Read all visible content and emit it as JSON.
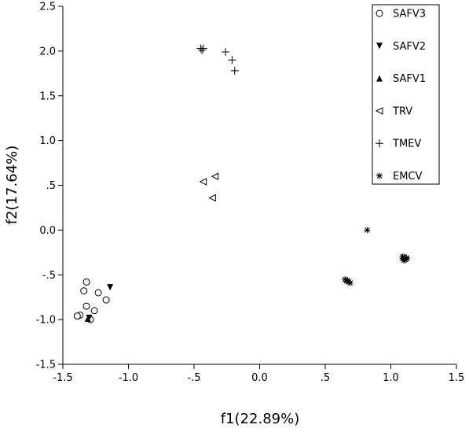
{
  "chart_data": {
    "type": "scatter",
    "title": "",
    "xlabel": "f1(22.89%)",
    "ylabel": "f2(17.64%)",
    "xlim": [
      -1.5,
      1.5
    ],
    "ylim": [
      -1.5,
      2.5
    ],
    "x_ticks": [
      -1.5,
      -1.0,
      -0.5,
      0.0,
      0.5,
      1.0,
      1.5
    ],
    "x_tick_labels": [
      "-1.5",
      "-1.0",
      "-.5",
      "0.0",
      ".5",
      "1.0",
      "1.5"
    ],
    "y_ticks": [
      2.5,
      2.0,
      1.5,
      1.0,
      0.5,
      0.0,
      -0.5,
      -1.0,
      -1.5
    ],
    "y_tick_labels": [
      "2.5",
      "2.0",
      "1.5",
      "1.0",
      ".5",
      "0.0",
      "-.5",
      "-1.0",
      "-1.5"
    ],
    "grid": false,
    "legend_position": "top-right",
    "series": [
      {
        "name": "SAFV3",
        "marker": "circle-open",
        "points": [
          [
            -1.32,
            -0.58
          ],
          [
            -1.34,
            -0.68
          ],
          [
            -1.23,
            -0.7
          ],
          [
            -1.17,
            -0.78
          ],
          [
            -1.32,
            -0.85
          ],
          [
            -1.26,
            -0.9
          ],
          [
            -1.37,
            -0.95
          ],
          [
            -1.39,
            -0.96
          ],
          [
            -1.29,
            -1.0
          ]
        ]
      },
      {
        "name": "SAFV2",
        "marker": "triangle-down-filled",
        "points": [
          [
            -1.14,
            -0.64
          ],
          [
            -1.3,
            -0.98
          ]
        ]
      },
      {
        "name": "SAFV1",
        "marker": "triangle-up-filled",
        "points": [
          [
            -1.31,
            -0.99
          ]
        ]
      },
      {
        "name": "TRV",
        "marker": "triangle-left-open",
        "points": [
          [
            -0.34,
            0.6
          ],
          [
            -0.43,
            0.54
          ],
          [
            -0.36,
            0.36
          ]
        ]
      },
      {
        "name": "TMEV",
        "marker": "plus",
        "points": [
          [
            -0.45,
            2.03
          ],
          [
            -0.43,
            2.03
          ],
          [
            -0.44,
            2.01
          ],
          [
            -0.26,
            1.99
          ],
          [
            -0.21,
            1.9
          ],
          [
            -0.19,
            1.78
          ]
        ]
      },
      {
        "name": "EMCV",
        "marker": "asterisk",
        "points": [
          [
            0.82,
            0.0
          ],
          [
            1.1,
            -0.3
          ],
          [
            1.12,
            -0.31
          ],
          [
            1.09,
            -0.32
          ],
          [
            1.11,
            -0.33
          ],
          [
            1.1,
            -0.34
          ],
          [
            1.12,
            -0.32
          ],
          [
            1.09,
            -0.3
          ],
          [
            0.65,
            -0.55
          ],
          [
            0.66,
            -0.57
          ],
          [
            0.68,
            -0.58
          ],
          [
            0.67,
            -0.56
          ],
          [
            0.69,
            -0.59
          ]
        ]
      }
    ]
  }
}
